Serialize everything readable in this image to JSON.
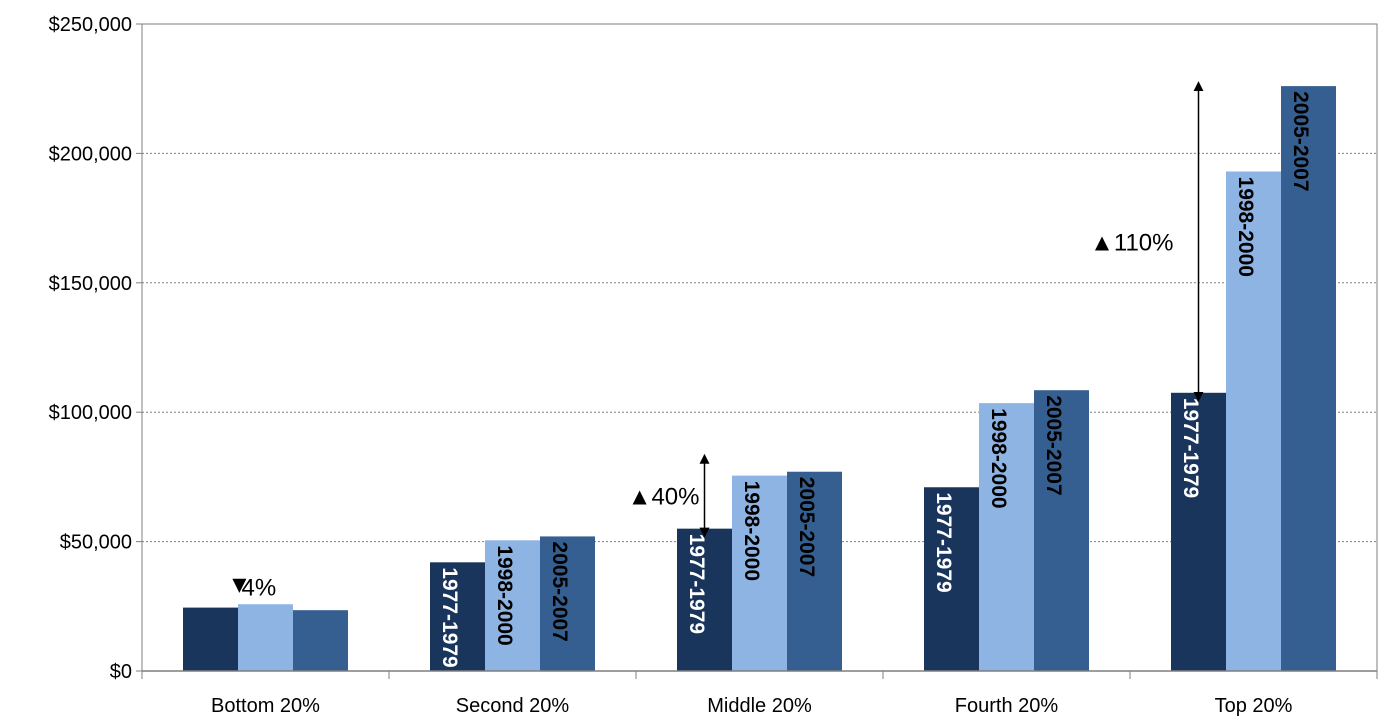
{
  "chart_data": {
    "type": "bar",
    "title": "",
    "xlabel": "",
    "ylabel": "",
    "categories": [
      "Bottom 20%",
      "Second 20%",
      "Middle 20%",
      "Fourth 20%",
      "Top 20%"
    ],
    "series": [
      {
        "label": "1977-1979",
        "color": "#1a355c",
        "label_color": "#ffffff",
        "values": [
          24500,
          42000,
          55000,
          71000,
          107500
        ]
      },
      {
        "label": "1998-2000",
        "color": "#8eb4e3",
        "label_color": "#000000",
        "values": [
          25800,
          50500,
          75500,
          103500,
          193000
        ]
      },
      {
        "label": "2005-2007",
        "color": "#365f91",
        "label_color": "#000000",
        "values": [
          23500,
          52000,
          77000,
          108500,
          226000
        ]
      }
    ],
    "bar_labels_on_categories": [
      1,
      2,
      3,
      4
    ],
    "ylim": [
      0,
      250000
    ],
    "yticks": [
      {
        "value": 0,
        "label": "$0"
      },
      {
        "value": 50000,
        "label": "$50,000"
      },
      {
        "value": 100000,
        "label": "$100,000"
      },
      {
        "value": 150000,
        "label": "$150,000"
      },
      {
        "value": 200000,
        "label": "$200,000"
      },
      {
        "value": 250000,
        "label": "$250,000"
      }
    ],
    "grid": true,
    "legend": "none",
    "annotations": [
      {
        "category": 0,
        "symbol": "▼",
        "text": "4%",
        "arrow": false
      },
      {
        "category": 2,
        "symbol": "▲",
        "text": "40%",
        "arrow": true,
        "from": 55000,
        "to": 82000
      },
      {
        "category": 4,
        "symbol": "▲",
        "text": "110%",
        "arrow": true,
        "from": 107500,
        "to": 226000
      }
    ]
  }
}
